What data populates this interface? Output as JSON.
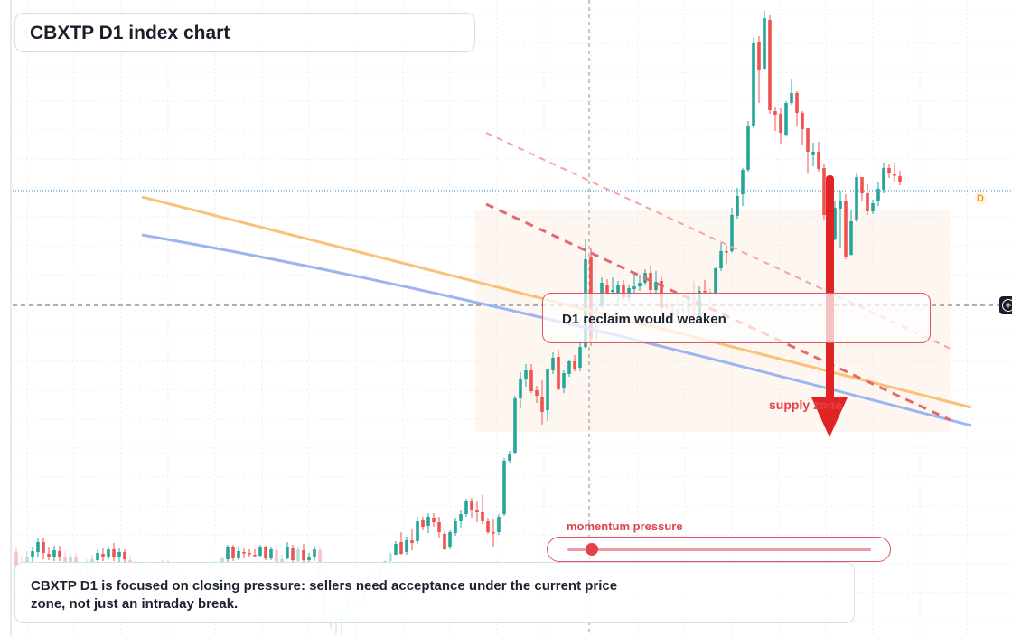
{
  "title": "CBXTP D1 index chart",
  "callout": "D1 reclaim would weaken",
  "zone_label": "supply zone",
  "momentum": {
    "label": "momentum pressure",
    "level": 0.08
  },
  "note": "CBXTP D1 is focused on closing pressure: sellers need acceptance under the current price zone, not just an intraday break.",
  "badge": "D",
  "colors": {
    "up": "#26a69a",
    "down": "#ef5350",
    "orange_line": "#f9c27a",
    "blue_line": "#9bb5f0",
    "arrow": "#e02424",
    "dashed": "#e36a6f"
  },
  "chart_data": {
    "type": "candlestick",
    "title": "CBXTP D1 index chart",
    "series": [
      {
        "o": 611,
        "h": 605,
        "l": 633,
        "c": 628
      },
      {
        "o": 628,
        "h": 617,
        "l": 635,
        "c": 631
      },
      {
        "o": 623,
        "h": 610,
        "l": 629,
        "c": 617
      },
      {
        "o": 617,
        "h": 605,
        "l": 622,
        "c": 610
      },
      {
        "o": 611,
        "h": 596,
        "l": 616,
        "c": 600
      },
      {
        "o": 600,
        "h": 595,
        "l": 619,
        "c": 612
      },
      {
        "o": 613,
        "h": 606,
        "l": 620,
        "c": 617
      },
      {
        "o": 617,
        "h": 604,
        "l": 621,
        "c": 609
      },
      {
        "o": 610,
        "h": 604,
        "l": 621,
        "c": 617
      },
      {
        "o": 617,
        "h": 610,
        "l": 630,
        "c": 626
      },
      {
        "o": 624,
        "h": 612,
        "l": 631,
        "c": 617
      },
      {
        "o": 617,
        "h": 612,
        "l": 633,
        "c": 630
      },
      {
        "o": 631,
        "h": 627,
        "l": 647,
        "c": 641
      },
      {
        "o": 638,
        "h": 619,
        "l": 640,
        "c": 624
      },
      {
        "o": 625,
        "h": 614,
        "l": 628,
        "c": 619
      },
      {
        "o": 620,
        "h": 608,
        "l": 622,
        "c": 612
      },
      {
        "o": 613,
        "h": 607,
        "l": 621,
        "c": 617
      },
      {
        "o": 617,
        "h": 605,
        "l": 619,
        "c": 608
      },
      {
        "o": 608,
        "h": 601,
        "l": 621,
        "c": 617
      },
      {
        "o": 616,
        "h": 607,
        "l": 626,
        "c": 611
      },
      {
        "o": 611,
        "h": 608,
        "l": 624,
        "c": 619
      },
      {
        "o": 620,
        "h": 614,
        "l": 627,
        "c": 622
      },
      {
        "o": 623,
        "h": 620,
        "l": 642,
        "c": 636
      },
      {
        "o": 638,
        "h": 624,
        "l": 645,
        "c": 626
      },
      {
        "o": 628,
        "h": 625,
        "l": 637,
        "c": 634
      },
      {
        "o": 633,
        "h": 626,
        "l": 649,
        "c": 645
      },
      {
        "o": 642,
        "h": 626,
        "l": 650,
        "c": 630
      },
      {
        "o": 631,
        "h": 620,
        "l": 634,
        "c": 623
      },
      {
        "o": 623,
        "h": 620,
        "l": 630,
        "c": 627
      },
      {
        "o": 627,
        "h": 623,
        "l": 640,
        "c": 636
      },
      {
        "o": 634,
        "h": 632,
        "l": 649,
        "c": 645
      },
      {
        "o": 645,
        "h": 634,
        "l": 652,
        "c": 640
      },
      {
        "o": 642,
        "h": 640,
        "l": 663,
        "c": 659
      },
      {
        "o": 660,
        "h": 654,
        "l": 664,
        "c": 660
      },
      {
        "o": 660,
        "h": 642,
        "l": 661,
        "c": 646
      },
      {
        "o": 647,
        "h": 639,
        "l": 658,
        "c": 651
      },
      {
        "o": 651,
        "h": 642,
        "l": 654,
        "c": 650
      },
      {
        "o": 649,
        "h": 629,
        "l": 650,
        "c": 632
      },
      {
        "o": 632,
        "h": 616,
        "l": 635,
        "c": 618
      },
      {
        "o": 619,
        "h": 603,
        "l": 623,
        "c": 606
      },
      {
        "o": 606,
        "h": 603,
        "l": 621,
        "c": 618
      },
      {
        "o": 618,
        "h": 605,
        "l": 620,
        "c": 610
      },
      {
        "o": 611,
        "h": 607,
        "l": 618,
        "c": 612
      },
      {
        "o": 612,
        "h": 608,
        "l": 616,
        "c": 613
      },
      {
        "o": 614,
        "h": 608,
        "l": 617,
        "c": 615
      },
      {
        "o": 615,
        "h": 603,
        "l": 616,
        "c": 606
      },
      {
        "o": 606,
        "h": 604,
        "l": 620,
        "c": 618
      },
      {
        "o": 618,
        "h": 606,
        "l": 620,
        "c": 608
      },
      {
        "o": 609,
        "h": 606,
        "l": 629,
        "c": 627
      },
      {
        "o": 625,
        "h": 614,
        "l": 631,
        "c": 619
      },
      {
        "o": 618,
        "h": 600,
        "l": 619,
        "c": 606
      },
      {
        "o": 607,
        "h": 603,
        "l": 625,
        "c": 620
      },
      {
        "o": 621,
        "h": 606,
        "l": 630,
        "c": 608
      },
      {
        "o": 609,
        "h": 602,
        "l": 626,
        "c": 620
      },
      {
        "o": 620,
        "h": 612,
        "l": 623,
        "c": 616
      },
      {
        "o": 616,
        "h": 604,
        "l": 621,
        "c": 608
      },
      {
        "o": 609,
        "h": 606,
        "l": 643,
        "c": 639
      },
      {
        "o": 640,
        "h": 632,
        "l": 688,
        "c": 685
      },
      {
        "o": 683,
        "h": 678,
        "l": 696,
        "c": 690
      },
      {
        "o": 689,
        "h": 679,
        "l": 702,
        "c": 685
      },
      {
        "o": 688,
        "h": 673,
        "l": 704,
        "c": 676
      },
      {
        "o": 676,
        "h": 663,
        "l": 680,
        "c": 666
      },
      {
        "o": 664,
        "h": 651,
        "l": 666,
        "c": 655
      },
      {
        "o": 655,
        "h": 645,
        "l": 668,
        "c": 664
      },
      {
        "o": 664,
        "h": 640,
        "l": 669,
        "c": 644
      },
      {
        "o": 644,
        "h": 631,
        "l": 650,
        "c": 634
      },
      {
        "o": 634,
        "h": 626,
        "l": 642,
        "c": 637
      },
      {
        "o": 636,
        "h": 628,
        "l": 640,
        "c": 630
      },
      {
        "o": 631,
        "h": 620,
        "l": 632,
        "c": 621
      },
      {
        "o": 621,
        "h": 611,
        "l": 623,
        "c": 613
      },
      {
        "o": 614,
        "h": 599,
        "l": 614,
        "c": 602
      },
      {
        "o": 600,
        "h": 589,
        "l": 614,
        "c": 613
      },
      {
        "o": 611,
        "h": 594,
        "l": 614,
        "c": 598
      },
      {
        "o": 598,
        "h": 586,
        "l": 609,
        "c": 601
      },
      {
        "o": 599,
        "h": 572,
        "l": 602,
        "c": 577
      },
      {
        "o": 576,
        "h": 572,
        "l": 587,
        "c": 583
      },
      {
        "o": 582,
        "h": 568,
        "l": 590,
        "c": 572
      },
      {
        "o": 573,
        "h": 568,
        "l": 583,
        "c": 578
      },
      {
        "o": 578,
        "h": 572,
        "l": 595,
        "c": 589
      },
      {
        "o": 591,
        "h": 588,
        "l": 609,
        "c": 608
      },
      {
        "o": 606,
        "h": 587,
        "l": 608,
        "c": 589
      },
      {
        "o": 590,
        "h": 573,
        "l": 593,
        "c": 577
      },
      {
        "o": 577,
        "h": 564,
        "l": 584,
        "c": 569
      },
      {
        "o": 569,
        "h": 552,
        "l": 572,
        "c": 555
      },
      {
        "o": 555,
        "h": 551,
        "l": 573,
        "c": 565
      },
      {
        "o": 565,
        "h": 555,
        "l": 578,
        "c": 567
      },
      {
        "o": 567,
        "h": 548,
        "l": 580,
        "c": 577
      },
      {
        "o": 577,
        "h": 573,
        "l": 591,
        "c": 589
      },
      {
        "o": 589,
        "h": 575,
        "l": 606,
        "c": 590
      },
      {
        "o": 589,
        "h": 569,
        "l": 592,
        "c": 572
      },
      {
        "o": 569,
        "h": 507,
        "l": 571,
        "c": 510
      },
      {
        "o": 510,
        "h": 499,
        "l": 513,
        "c": 502
      },
      {
        "o": 501,
        "h": 438,
        "l": 503,
        "c": 441
      },
      {
        "o": 441,
        "h": 412,
        "l": 452,
        "c": 419
      },
      {
        "o": 419,
        "h": 403,
        "l": 428,
        "c": 410
      },
      {
        "o": 410,
        "h": 403,
        "l": 435,
        "c": 433
      },
      {
        "o": 432,
        "h": 427,
        "l": 446,
        "c": 438
      },
      {
        "o": 439,
        "h": 421,
        "l": 470,
        "c": 456
      },
      {
        "o": 454,
        "h": 408,
        "l": 466,
        "c": 409
      },
      {
        "o": 410,
        "h": 390,
        "l": 414,
        "c": 396
      },
      {
        "o": 395,
        "h": 387,
        "l": 432,
        "c": 431
      },
      {
        "o": 430,
        "h": 410,
        "l": 435,
        "c": 413
      },
      {
        "o": 414,
        "h": 398,
        "l": 417,
        "c": 400
      },
      {
        "o": 400,
        "h": 393,
        "l": 411,
        "c": 409
      },
      {
        "o": 407,
        "h": 378,
        "l": 411,
        "c": 384
      },
      {
        "o": 384,
        "h": 265,
        "l": 386,
        "c": 287
      },
      {
        "o": 285,
        "h": 274,
        "l": 383,
        "c": 375
      },
      {
        "o": 375,
        "h": 331,
        "l": 380,
        "c": 340
      },
      {
        "o": 339,
        "h": 307,
        "l": 341,
        "c": 313
      },
      {
        "o": 315,
        "h": 309,
        "l": 326,
        "c": 324
      },
      {
        "o": 323,
        "h": 307,
        "l": 328,
        "c": 321
      },
      {
        "o": 324,
        "h": 311,
        "l": 337,
        "c": 316
      },
      {
        "o": 316,
        "h": 310,
        "l": 333,
        "c": 330
      },
      {
        "o": 329,
        "h": 315,
        "l": 333,
        "c": 319
      },
      {
        "o": 320,
        "h": 304,
        "l": 324,
        "c": 317
      },
      {
        "o": 317,
        "h": 304,
        "l": 322,
        "c": 313
      },
      {
        "o": 313,
        "h": 298,
        "l": 316,
        "c": 302
      },
      {
        "o": 302,
        "h": 294,
        "l": 325,
        "c": 321
      },
      {
        "o": 321,
        "h": 300,
        "l": 326,
        "c": 312
      },
      {
        "o": 311,
        "h": 305,
        "l": 353,
        "c": 341
      },
      {
        "o": 342,
        "h": 325,
        "l": 351,
        "c": 336
      },
      {
        "o": 336,
        "h": 332,
        "l": 354,
        "c": 350
      },
      {
        "o": 351,
        "h": 324,
        "l": 354,
        "c": 342
      },
      {
        "o": 341,
        "h": 325,
        "l": 350,
        "c": 346
      },
      {
        "o": 345,
        "h": 322,
        "l": 358,
        "c": 327
      },
      {
        "o": 325,
        "h": 311,
        "l": 353,
        "c": 351
      },
      {
        "o": 351,
        "h": 317,
        "l": 356,
        "c": 322
      },
      {
        "o": 322,
        "h": 310,
        "l": 324,
        "c": 323
      },
      {
        "o": 323,
        "h": 319,
        "l": 342,
        "c": 325
      },
      {
        "o": 324,
        "h": 295,
        "l": 326,
        "c": 297
      },
      {
        "o": 297,
        "h": 269,
        "l": 300,
        "c": 278
      },
      {
        "o": 278,
        "h": 272,
        "l": 292,
        "c": 279
      },
      {
        "o": 278,
        "h": 230,
        "l": 280,
        "c": 238
      },
      {
        "o": 239,
        "h": 208,
        "l": 242,
        "c": 217
      },
      {
        "o": 215,
        "h": 186,
        "l": 228,
        "c": 188
      },
      {
        "o": 188,
        "h": 134,
        "l": 190,
        "c": 140
      },
      {
        "o": 139,
        "h": 42,
        "l": 142,
        "c": 48
      },
      {
        "o": 47,
        "h": 40,
        "l": 114,
        "c": 78
      },
      {
        "o": 76,
        "h": 12,
        "l": 78,
        "c": 20
      },
      {
        "o": 22,
        "h": 17,
        "l": 126,
        "c": 122
      },
      {
        "o": 123,
        "h": 118,
        "l": 145,
        "c": 127
      },
      {
        "o": 126,
        "h": 119,
        "l": 159,
        "c": 147
      },
      {
        "o": 149,
        "h": 112,
        "l": 150,
        "c": 114
      },
      {
        "o": 114,
        "h": 87,
        "l": 116,
        "c": 103
      },
      {
        "o": 103,
        "h": 101,
        "l": 140,
        "c": 125
      },
      {
        "o": 125,
        "h": 123,
        "l": 161,
        "c": 143
      },
      {
        "o": 142,
        "h": 165,
        "l": 191,
        "c": 168
      },
      {
        "o": 172,
        "h": 158,
        "l": 184,
        "c": 168
      },
      {
        "o": 168,
        "h": 157,
        "l": 190,
        "c": 187
      },
      {
        "o": 186,
        "h": 182,
        "l": 244,
        "c": 238
      },
      {
        "o": 237,
        "h": 232,
        "l": 270,
        "c": 262
      },
      {
        "o": 264,
        "h": 222,
        "l": 266,
        "c": 230
      },
      {
        "o": 231,
        "h": 211,
        "l": 275,
        "c": 223
      },
      {
        "o": 222,
        "h": 215,
        "l": 287,
        "c": 284
      },
      {
        "o": 282,
        "h": 232,
        "l": 283,
        "c": 245
      },
      {
        "o": 244,
        "h": 191,
        "l": 246,
        "c": 196
      },
      {
        "o": 196,
        "h": 212,
        "l": 223,
        "c": 214
      },
      {
        "o": 214,
        "h": 204,
        "l": 238,
        "c": 234
      },
      {
        "o": 234,
        "h": 221,
        "l": 237,
        "c": 225
      },
      {
        "o": 223,
        "h": 202,
        "l": 228,
        "c": 209
      },
      {
        "o": 210,
        "h": 180,
        "l": 214,
        "c": 186
      },
      {
        "o": 186,
        "h": 182,
        "l": 197,
        "c": 192
      },
      {
        "o": 193,
        "h": 180,
        "l": 201,
        "c": 193
      },
      {
        "o": 195,
        "h": 189,
        "l": 205,
        "c": 201
      }
    ],
    "xlabel": "",
    "ylabel": ""
  }
}
